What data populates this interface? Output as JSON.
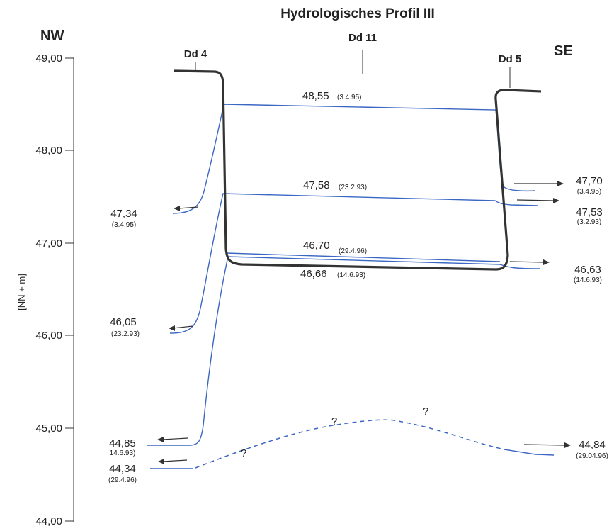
{
  "title": "Hydrologisches Profil III",
  "directions": {
    "left": "NW",
    "right": "SE"
  },
  "wells": {
    "left": "Dd 4",
    "center": "Dd 11",
    "right": "Dd 5"
  },
  "axis": {
    "label": "[NN + m]",
    "ticks": [
      "49,00",
      "48,00",
      "47,00",
      "46,00",
      "45,00",
      "44,00"
    ]
  },
  "center_levels": [
    {
      "value": "48,55",
      "date": "(3.4.95)"
    },
    {
      "value": "47,58",
      "date": "(23.2.93)"
    },
    {
      "value": "46,70",
      "date": "(29.4.96)"
    },
    {
      "value": "46,66",
      "date": "(14.6.93)"
    }
  ],
  "left_levels": [
    {
      "value": "47,34",
      "date": "(3.4.95)"
    },
    {
      "value": "46,05",
      "date": "(23.2.93)"
    },
    {
      "value": "44,85",
      "date": "14.6.93)"
    },
    {
      "value": "44,34",
      "date": "(29.4.96)"
    }
  ],
  "right_levels": [
    {
      "value": "47,70",
      "date": "(3.4.95)"
    },
    {
      "value": "47,53",
      "date": "(3.2.93)"
    },
    {
      "value": "46,63",
      "date": "(14.6.93)"
    },
    {
      "value": "44,84",
      "date": "(29.04.96)"
    }
  ],
  "uncertain_marks": [
    "?",
    "?",
    "?"
  ],
  "colors": {
    "water_line": "#3b67c4",
    "ground": "#333333",
    "text": "#222222"
  }
}
